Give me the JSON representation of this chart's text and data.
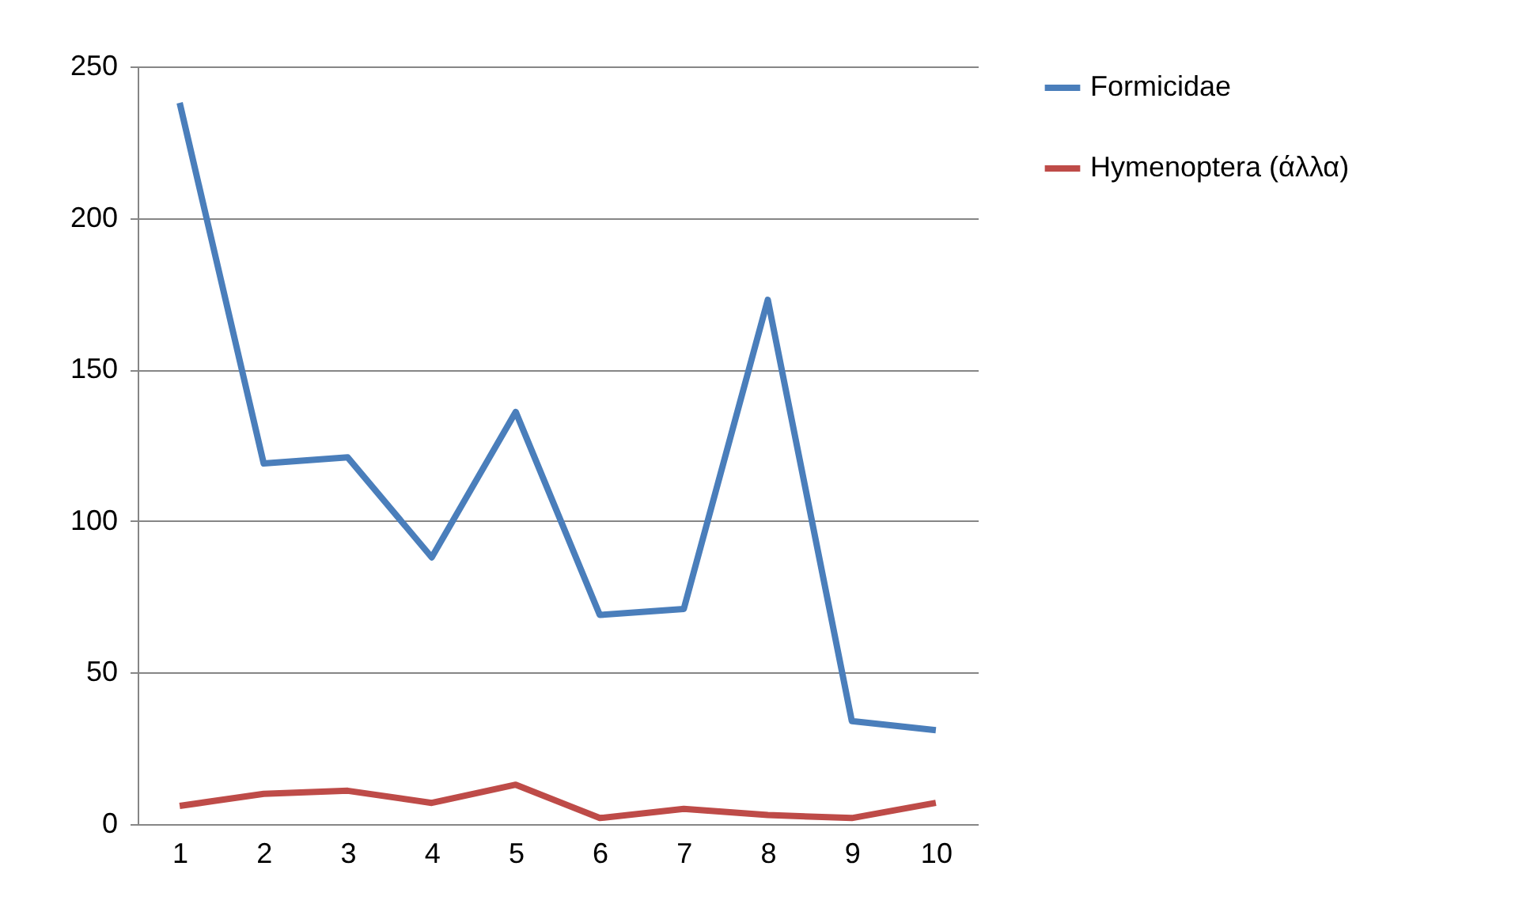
{
  "chart_data": {
    "type": "line",
    "categories": [
      "1",
      "2",
      "3",
      "4",
      "5",
      "6",
      "7",
      "8",
      "9",
      "10"
    ],
    "series": [
      {
        "name": "Formicidae",
        "color": "#4a7ebb",
        "values": [
          238,
          119,
          121,
          88,
          136,
          69,
          71,
          173,
          34,
          31
        ]
      },
      {
        "name": "Hymenoptera (άλλα)",
        "color": "#be4b48",
        "values": [
          6,
          10,
          11,
          7,
          13,
          2,
          5,
          3,
          2,
          7
        ]
      }
    ],
    "ylim": [
      0,
      250
    ],
    "yticks": [
      0,
      50,
      100,
      150,
      200,
      250
    ],
    "grid": "y",
    "legend": "right"
  }
}
